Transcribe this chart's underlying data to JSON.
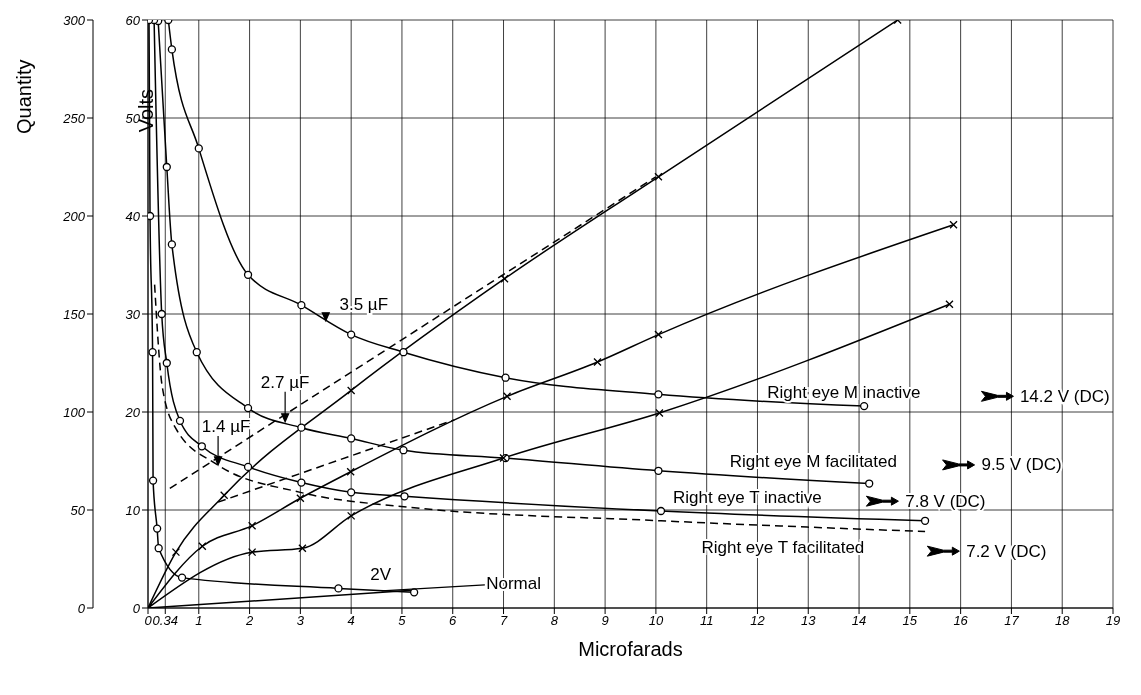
{
  "chart_data": {
    "type": "line",
    "xlabel": "Microfarads",
    "ylabel": "Volts",
    "y2label": "Quantity",
    "xlim": [
      0,
      19
    ],
    "xticks": [
      0,
      {
        "value": 0.34,
        "label": "0.34"
      },
      1,
      2,
      3,
      4,
      5,
      6,
      7,
      8,
      9,
      10,
      11,
      12,
      13,
      14,
      15,
      16,
      17,
      18,
      19
    ],
    "ylim": [
      0,
      60
    ],
    "yticks": [
      0,
      10,
      20,
      30,
      40,
      50,
      60
    ],
    "y2lim": [
      0,
      300
    ],
    "y2ticks": [
      0,
      50,
      100,
      150,
      200,
      250,
      300
    ],
    "grid": true,
    "legend": false,
    "series": [
      {
        "color": "#000000",
        "marker": "circle",
        "x": [
          0.4,
          0.47,
          1.0,
          1.97,
          3.02,
          4.0,
          5.03,
          7.04,
          10.05,
          14.1
        ],
        "values": [
          60,
          57.0,
          46.9,
          34.0,
          30.9,
          27.9,
          26.1,
          23.5,
          21.8,
          20.6
        ]
      },
      {
        "color": "#000000",
        "marker": "circle",
        "x": [
          0.2,
          0.37,
          0.47,
          0.96,
          1.97,
          3.02,
          4.0,
          5.03,
          7.04,
          10.05,
          14.2
        ],
        "values": [
          59.9,
          45.0,
          37.1,
          26.1,
          20.4,
          18.4,
          17.3,
          16.1,
          15.3,
          14.0,
          12.7
        ]
      },
      {
        "color": "#000000",
        "marker": "circle",
        "x": [
          0.12,
          0.27,
          0.37,
          0.63,
          1.06,
          1.97,
          3.02,
          4.0,
          5.05,
          10.1,
          15.3
        ],
        "values": [
          60,
          30.0,
          25.0,
          19.1,
          16.5,
          14.4,
          12.8,
          11.8,
          11.4,
          9.9,
          8.9
        ]
      },
      {
        "color": "#000000",
        "marker": "none",
        "line_style": "dashed",
        "x": [
          0.13,
          0.28,
          0.55,
          1.34,
          3.0,
          5.1,
          10.1,
          15.3
        ],
        "values": [
          33,
          22.6,
          18.3,
          14.7,
          11.8,
          10.3,
          8.9,
          7.8
        ]
      },
      {
        "color": "#000000",
        "marker": "circle",
        "x": [
          0.02,
          0.04,
          0.09,
          0.1,
          0.18,
          0.21,
          0.67,
          3.75,
          5.24
        ],
        "values": [
          60,
          40,
          26.1,
          13.0,
          8.1,
          6.1,
          3.1,
          2.0,
          1.6
        ]
      },
      {
        "color": "#000000",
        "marker": "cross",
        "axis": "y2",
        "x": [
          0,
          0.55,
          1.5,
          4.0,
          7.02,
          10.05,
          14.76
        ],
        "values": [
          0,
          28.5,
          57.5,
          111,
          168,
          220,
          300
        ]
      },
      {
        "color": "#000000",
        "marker": "cross",
        "axis": "y2",
        "x": [
          0,
          1.07,
          2.05,
          3.0,
          3.99,
          7.07,
          8.85,
          10.05,
          15.86
        ],
        "values": [
          0,
          31.5,
          42,
          56,
          69.5,
          108,
          125.5,
          139.5,
          195.5
        ]
      },
      {
        "color": "#000000",
        "marker": "cross",
        "axis": "y2",
        "x": [
          0,
          2.05,
          3.04,
          4.0,
          7.0,
          10.07,
          15.78
        ],
        "values": [
          0,
          28.5,
          30.5,
          47,
          76.5,
          99.5,
          155
        ]
      },
      {
        "color": "#000000",
        "marker": "none",
        "axis": "y2",
        "x": [
          0,
          5.2
        ],
        "values": [
          0,
          9
        ]
      },
      {
        "color": "#000000",
        "marker": "none",
        "line_style": "dashed",
        "axis": "y2",
        "x": [
          0.43,
          10
        ],
        "values": [
          61,
          220
        ]
      },
      {
        "color": "#000000",
        "marker": "none",
        "line_style": "dashed",
        "axis": "y2",
        "x": [
          1.38,
          6.03
        ],
        "values": [
          54,
          96
        ]
      }
    ],
    "annotations": [
      {
        "text": "3.5 µF",
        "x": 3.5,
        "y": 29.3
      },
      {
        "text": "2.7 µF",
        "x": 2.7,
        "y": 19.0
      },
      {
        "text": "1.4 µF",
        "x": 1.38,
        "y": 14.6
      },
      {
        "text": "2V",
        "x": 4.58,
        "y": 1.78
      },
      {
        "text": "Normal",
        "x": 4.6,
        "y": 1.75
      },
      "Right eye M inactive",
      "14.2 V (DC)",
      "Right eye M facilitated",
      "9.5 V (DC)",
      "Right eye T inactive",
      "7.8 V (DC)",
      "Right eye T facilitated",
      "7.2 V (DC)"
    ]
  }
}
